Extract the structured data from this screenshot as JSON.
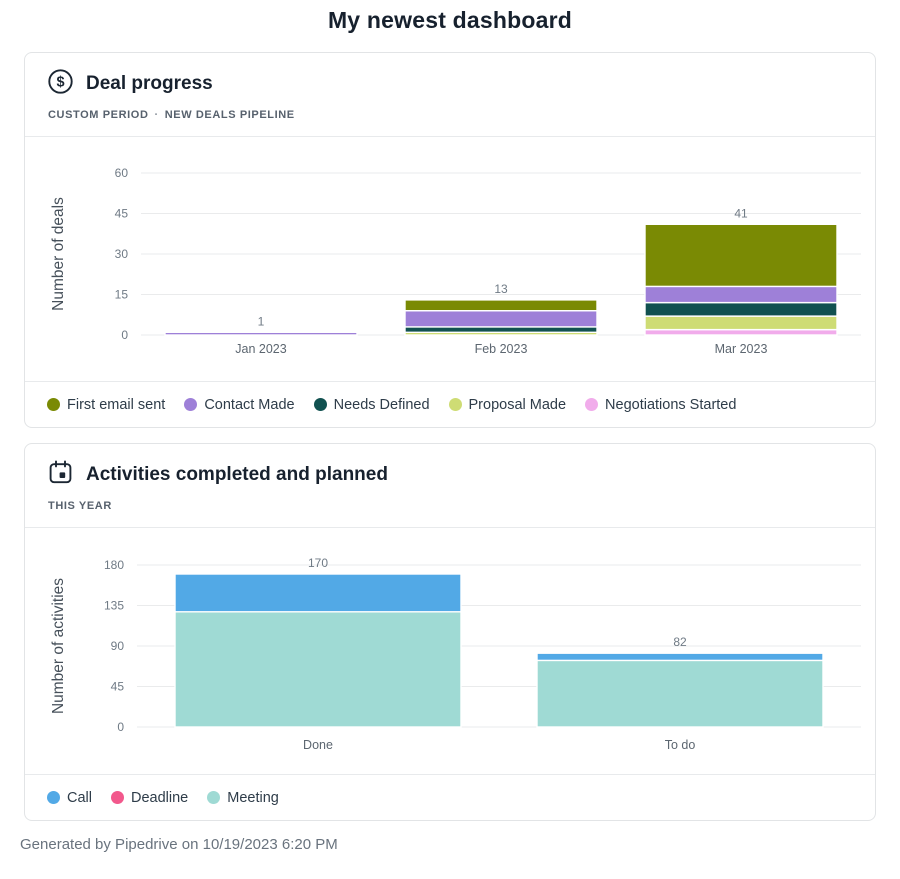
{
  "page": {
    "title": "My newest dashboard",
    "footer": "Generated by Pipedrive on 10/19/2023 6:20 PM"
  },
  "cards": [
    {
      "icon": "dollar-icon",
      "title": "Deal progress",
      "subtitle": [
        "CUSTOM PERIOD",
        "NEW DEALS PIPELINE"
      ],
      "separator": "·"
    },
    {
      "icon": "calendar-icon",
      "title": "Activities completed and planned",
      "subtitle": [
        "THIS YEAR"
      ]
    }
  ],
  "chart_data": [
    {
      "type": "bar",
      "stacked": true,
      "title": "Deal progress",
      "categories": [
        "Jan 2023",
        "Feb 2023",
        "Mar 2023"
      ],
      "series": [
        {
          "name": "First email sent",
          "color": "#7a8a04",
          "values": [
            0,
            4,
            23
          ]
        },
        {
          "name": "Contact Made",
          "color": "#9e80d8",
          "values": [
            1,
            6,
            6
          ]
        },
        {
          "name": "Needs Defined",
          "color": "#115150",
          "values": [
            0,
            2,
            5
          ]
        },
        {
          "name": "Proposal Made",
          "color": "#cedc74",
          "values": [
            0,
            1,
            5
          ]
        },
        {
          "name": "Negotiations Started",
          "color": "#f1aceb",
          "values": [
            0,
            0,
            2
          ]
        }
      ],
      "totals": [
        1,
        13,
        41
      ],
      "stack_order": "first-series-on-top",
      "xlabel": "",
      "ylabel": "Number of deals",
      "yticks": [
        0,
        15,
        30,
        45,
        60
      ],
      "ylim": [
        0,
        60
      ],
      "grid": true,
      "legend_position": "bottom"
    },
    {
      "type": "bar",
      "stacked": true,
      "title": "Activities completed and planned",
      "categories": [
        "Done",
        "To do"
      ],
      "series": [
        {
          "name": "Call",
          "color": "#52a9e6",
          "values": [
            42,
            8
          ]
        },
        {
          "name": "Deadline",
          "color": "#f2588c",
          "values": [
            0,
            0
          ]
        },
        {
          "name": "Meeting",
          "color": "#9fdad4",
          "values": [
            128,
            74
          ]
        }
      ],
      "totals": [
        170,
        82
      ],
      "stack_order": "first-series-on-top",
      "xlabel": "",
      "ylabel": "Number of activities",
      "yticks": [
        0,
        45,
        90,
        135,
        180
      ],
      "ylim": [
        0,
        180
      ],
      "grid": true,
      "legend_position": "bottom"
    }
  ]
}
